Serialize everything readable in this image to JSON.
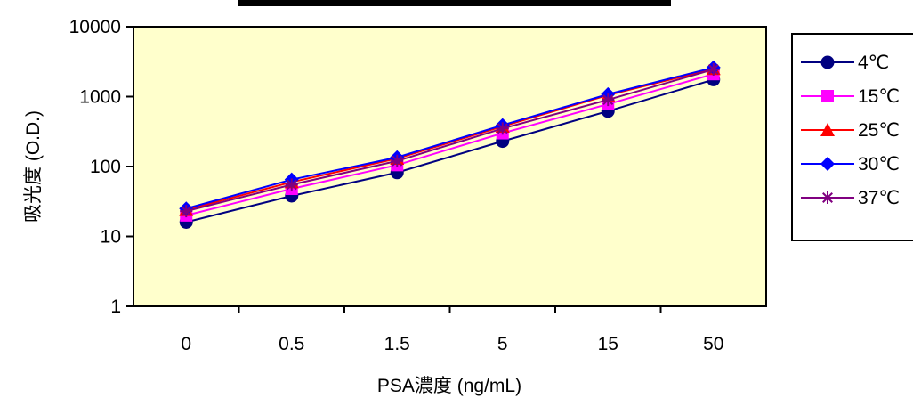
{
  "chart_data": {
    "type": "line",
    "y_scale": "log",
    "categories": [
      "0",
      "0.5",
      "1.5",
      "5",
      "15",
      "50"
    ],
    "y_ticks": [
      "1",
      "10",
      "100",
      "1000",
      "10000"
    ],
    "ylim": [
      1,
      10000
    ],
    "xlabel": "PSA濃度 (ng/mL)",
    "ylabel": "吸光度 (O.D.)",
    "legend_position": "right",
    "plot_background": "#ffffcc",
    "series": [
      {
        "name": "4℃",
        "color": "#000080",
        "marker": "circle",
        "values": [
          16,
          38,
          82,
          230,
          620,
          1750
        ]
      },
      {
        "name": "15℃",
        "color": "#ff00ff",
        "marker": "square",
        "values": [
          20,
          48,
          105,
          300,
          780,
          2100
        ]
      },
      {
        "name": "25℃",
        "color": "#ff0000",
        "marker": "triangle",
        "values": [
          24,
          60,
          130,
          375,
          1050,
          2500
        ]
      },
      {
        "name": "30℃",
        "color": "#0000ff",
        "marker": "diamond",
        "values": [
          25,
          65,
          135,
          390,
          1080,
          2600
        ]
      },
      {
        "name": "37℃",
        "color": "#800080",
        "marker": "star",
        "values": [
          23,
          55,
          120,
          350,
          900,
          2450
        ]
      }
    ]
  }
}
